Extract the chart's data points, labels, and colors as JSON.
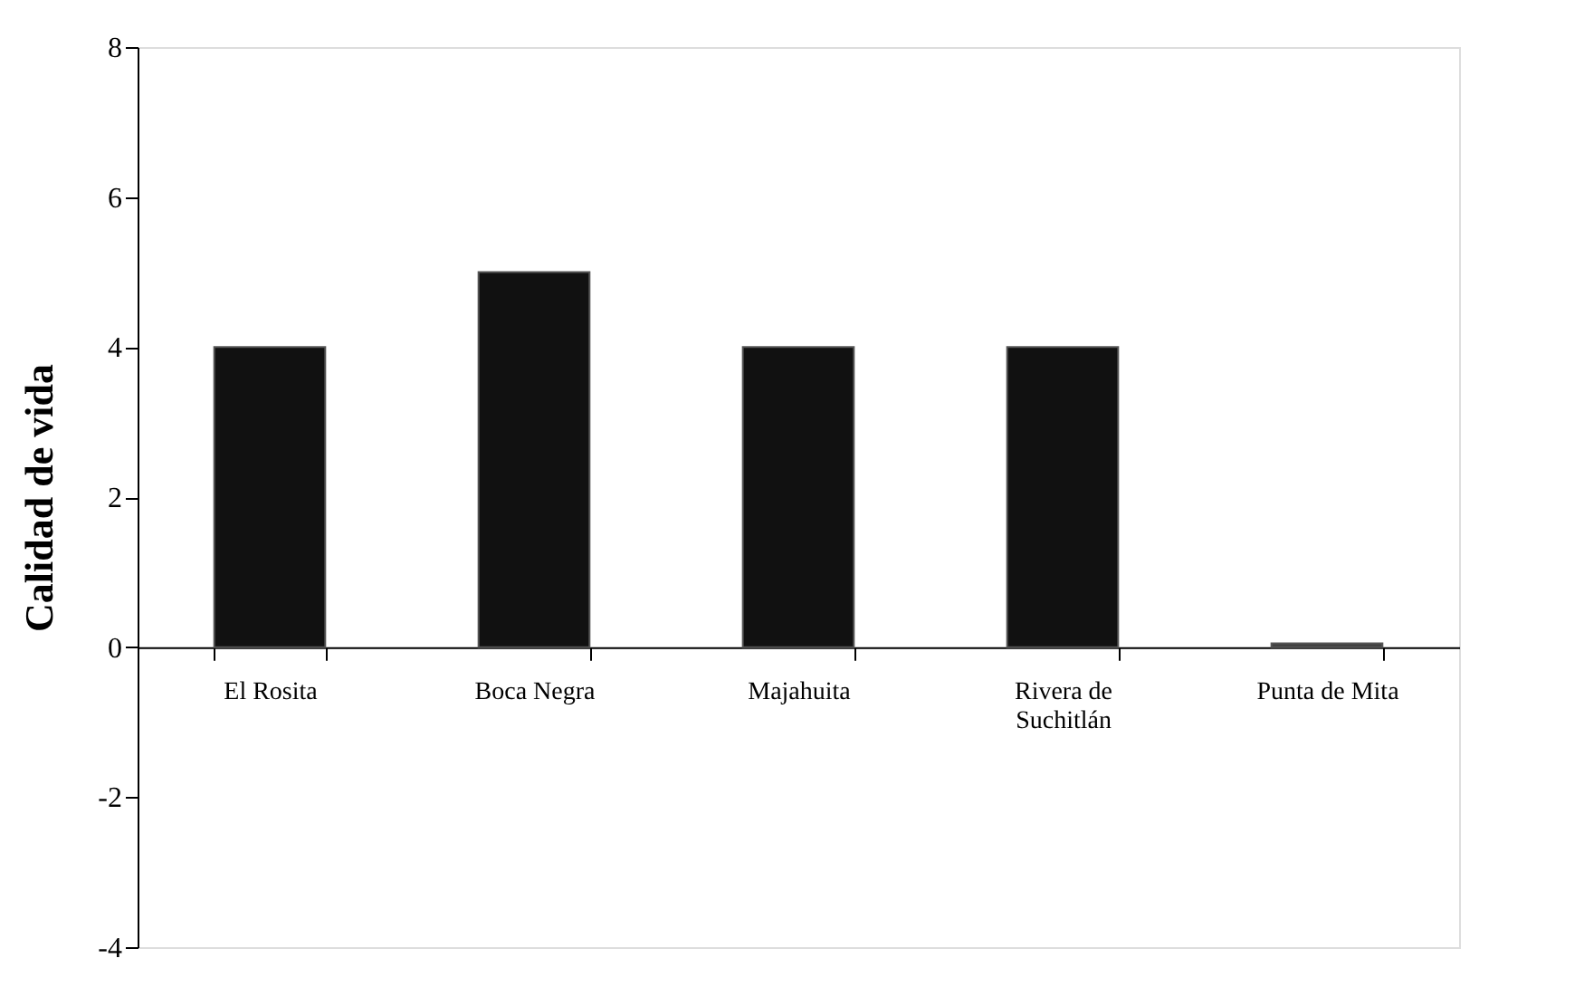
{
  "chart_data": {
    "type": "bar",
    "ylabel": "Calidad de vida",
    "categories": [
      "El Rosita",
      "Boca Negra",
      "Majahuita",
      "Rivera de Suchitlán",
      "Punta de Mita"
    ],
    "values": [
      4,
      5,
      4,
      4,
      0.05
    ],
    "colors": [
      "#111111",
      "#111111",
      "#111111",
      "#111111",
      "#404040"
    ],
    "ylim": [
      -4,
      8
    ],
    "yticks": [
      -4,
      -2,
      0,
      2,
      4,
      6,
      8
    ],
    "grid": false
  }
}
